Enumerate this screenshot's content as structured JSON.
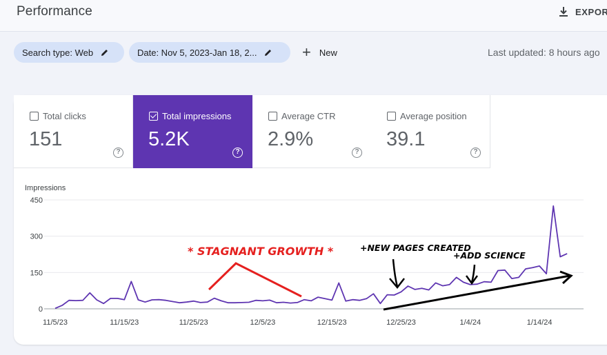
{
  "header": {
    "title": "Performance",
    "export_label": "EXPORT"
  },
  "filters": {
    "search_type": "Search type: Web",
    "date": "Date: Nov 5, 2023-Jan 18, 2...",
    "new_label": "New",
    "last_updated": "Last updated: 8 hours ago"
  },
  "metrics": [
    {
      "label": "Total clicks",
      "value": "151",
      "checked": false
    },
    {
      "label": "Total impressions",
      "value": "5.2K",
      "checked": true
    },
    {
      "label": "Average CTR",
      "value": "2.9%",
      "checked": false
    },
    {
      "label": "Average position",
      "value": "39.1",
      "checked": false
    }
  ],
  "colors": {
    "accent": "#5e35b1",
    "line": "#5e35b1",
    "annotation_red": "#e5201f",
    "annotation_black": "#000000"
  },
  "annotations": {
    "stagnant": "* STAGNANT GROWTH *",
    "new_pages": "+NEW PAGES CREATED",
    "add_science": "+ADD SCIENCE"
  },
  "chart_data": {
    "type": "line",
    "ylabel": "Impressions",
    "ylim": [
      0,
      450
    ],
    "yticks": [
      0,
      150,
      300,
      450
    ],
    "xtick_labels": [
      "11/5/23",
      "11/15/23",
      "11/25/23",
      "12/5/23",
      "12/15/23",
      "12/25/23",
      "1/4/24",
      "1/14/24"
    ],
    "x_start": "11/5/23",
    "x_end": "1/18/24",
    "grid": true,
    "series": [
      {
        "values": [
          2,
          14,
          35,
          34,
          35,
          66,
          37,
          22,
          43,
          43,
          38,
          113,
          37,
          28,
          37,
          38,
          35,
          30,
          25,
          28,
          32,
          26,
          28,
          44,
          33,
          25,
          25,
          26,
          27,
          35,
          33,
          36,
          25,
          27,
          24,
          26,
          38,
          33,
          48,
          42,
          36,
          107,
          32,
          38,
          35,
          42,
          62,
          22,
          58,
          57,
          70,
          94,
          80,
          85,
          78,
          107,
          95,
          100,
          130,
          110,
          100,
          102,
          112,
          110,
          158,
          160,
          125,
          130,
          165,
          170,
          177,
          145,
          425,
          215,
          228
        ]
      }
    ]
  }
}
